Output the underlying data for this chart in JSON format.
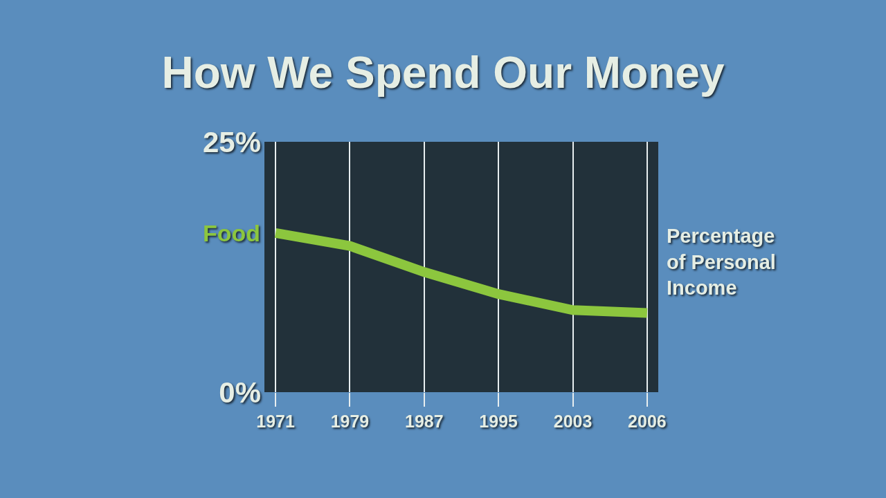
{
  "chart_data": {
    "type": "line",
    "title": "How We Spend Our Money",
    "ylabel": "Percentage of Personal Income",
    "categories": [
      "1971",
      "1979",
      "1987",
      "1995",
      "2003",
      "2006"
    ],
    "series": [
      {
        "name": "Food",
        "color": "#8cc63e",
        "values": [
          15.9,
          14.6,
          12.0,
          9.8,
          8.2,
          7.9
        ]
      }
    ],
    "ylim": [
      0,
      25
    ],
    "yticks": [
      {
        "value": 0,
        "label": "0%"
      },
      {
        "value": 25,
        "label": "25%"
      }
    ],
    "grid": "x"
  }
}
